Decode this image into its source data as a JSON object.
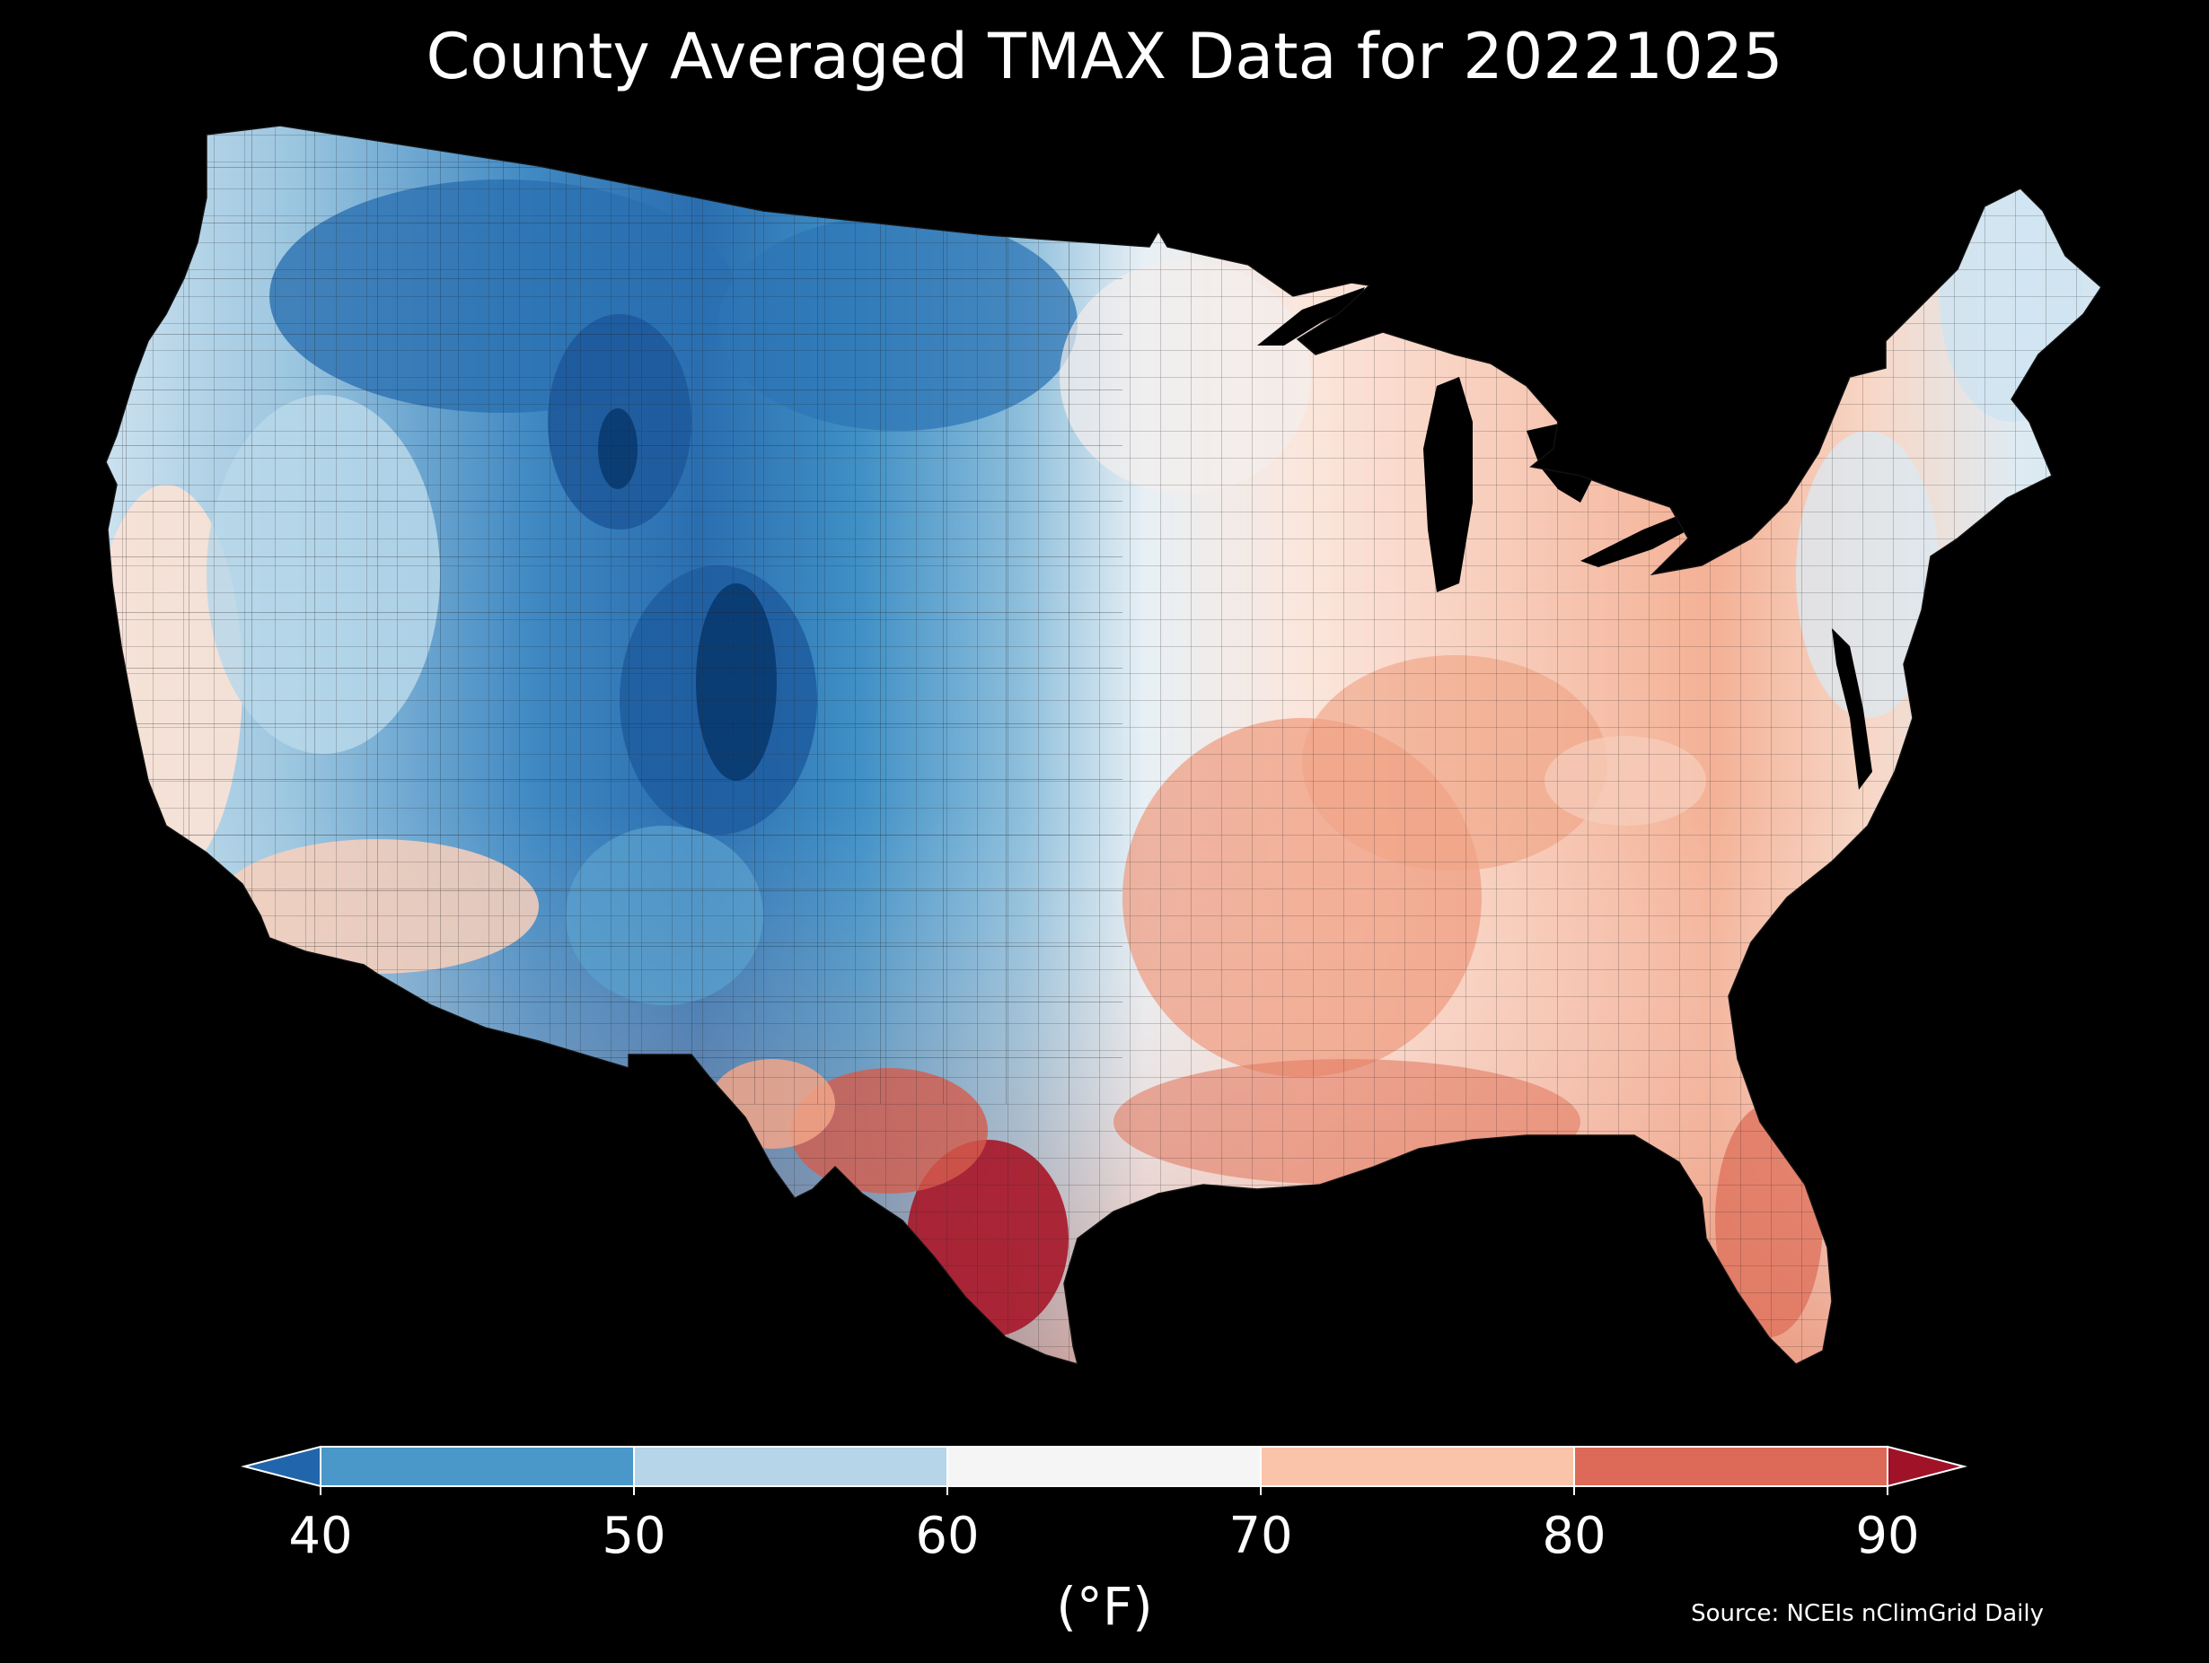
{
  "title": "County Averaged TMAX Data for 20221025",
  "source": "Source: NCEIs nClimGrid Daily",
  "colorbar": {
    "label": "(°F)",
    "ticks": [
      "40",
      "50",
      "60",
      "70",
      "80",
      "90"
    ],
    "bins": [
      {
        "range": [
          40,
          50
        ],
        "color": "#4a98c9"
      },
      {
        "range": [
          50,
          60
        ],
        "color": "#b6d5e8"
      },
      {
        "range": [
          60,
          70
        ],
        "color": "#f5f5f5"
      },
      {
        "range": [
          70,
          80
        ],
        "color": "#f9c4a9"
      },
      {
        "range": [
          80,
          90
        ],
        "color": "#dd6a58"
      }
    ],
    "under_color": "#2166ac",
    "over_color": "#9f1228",
    "extend": "both"
  },
  "colors": {
    "background": "#000000",
    "water": "#000000",
    "county_border": "#1a1a1a"
  },
  "map_data": {
    "region": "Contiguous United States",
    "variable": "TMAX",
    "units": "°F",
    "pattern": {
      "coldest": "Wyoming / Colorado Front Range and Rockies (below 40)",
      "cool": "Northern Plains, Northwest, Great Basin (40-60)",
      "near_60_70": "Upper Midwest, Northeast, California coast, desert Southwest",
      "warm": "Ohio Valley, Southeast, Mid-South (70-80)",
      "hottest": "South Texas (above 90)"
    }
  }
}
